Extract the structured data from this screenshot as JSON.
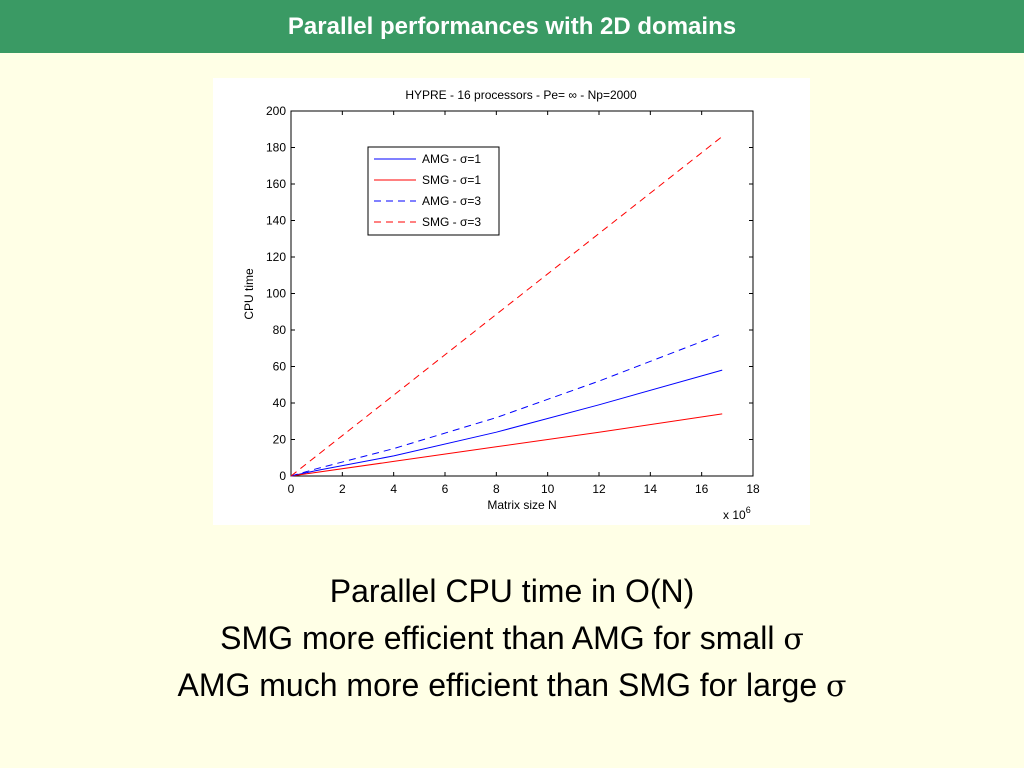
{
  "slide": {
    "title": "Parallel performances with 2D domains",
    "colors": {
      "header": "#3a9a64",
      "background": "#ffffe6"
    }
  },
  "caption": {
    "line1": "Parallel CPU time in O(N)",
    "line2_text": "SMG more efficient than AMG for small ",
    "line3_text": "AMG much more efficient than SMG for large ",
    "sigma_symbol": "σ"
  },
  "chart_data": {
    "type": "line",
    "title": "HYPRE - 16 processors - Pe= ∞ - Np=2000",
    "xlabel": "Matrix size N",
    "ylabel": "CPU time",
    "x_exponent_label": "x 10",
    "x_exponent_power": "6",
    "xlim": [
      0,
      18
    ],
    "ylim": [
      0,
      200
    ],
    "x_ticks": [
      0,
      2,
      4,
      6,
      8,
      10,
      12,
      14,
      16,
      18
    ],
    "y_ticks": [
      0,
      20,
      40,
      60,
      80,
      100,
      120,
      140,
      160,
      180,
      200
    ],
    "grid": false,
    "legend_position": "top-left",
    "series": [
      {
        "name": "AMG -  σ=1",
        "color": "#0000ff",
        "dash": false,
        "x": [
          0,
          1,
          4,
          8,
          12,
          16.8
        ],
        "y": [
          0,
          3,
          11,
          24,
          39,
          58
        ]
      },
      {
        "name": "SMG -  σ=1",
        "color": "#ff0000",
        "dash": false,
        "x": [
          0,
          4,
          8,
          12,
          16.8
        ],
        "y": [
          0,
          8,
          16,
          24,
          34
        ]
      },
      {
        "name": "AMG -  σ=3",
        "color": "#0000ff",
        "dash": true,
        "x": [
          0,
          1,
          4,
          8,
          12,
          16.8
        ],
        "y": [
          0,
          4,
          15,
          32,
          52,
          78
        ]
      },
      {
        "name": "SMG -  σ=3",
        "color": "#ff0000",
        "dash": true,
        "x": [
          0,
          16.8
        ],
        "y": [
          0,
          186
        ]
      }
    ]
  }
}
